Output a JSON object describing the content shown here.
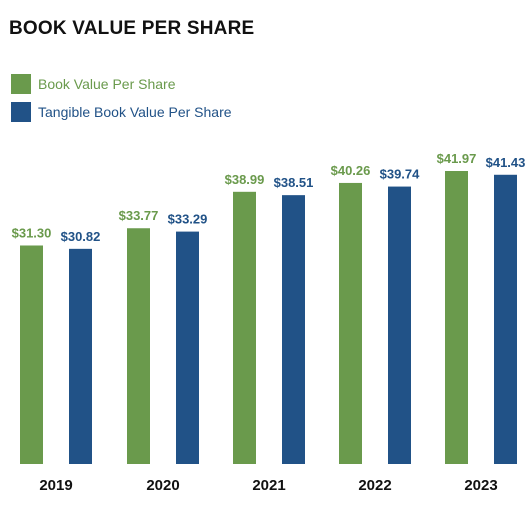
{
  "colors": {
    "book_value": "#6a9a4c",
    "tangible_book_value": "#215287"
  },
  "chart_data": {
    "type": "bar",
    "title": "BOOK VALUE PER SHARE",
    "categories": [
      "2019",
      "2020",
      "2021",
      "2022",
      "2023"
    ],
    "series": [
      {
        "name": "Book Value Per Share",
        "values": [
          31.3,
          33.77,
          38.99,
          40.26,
          41.97
        ],
        "labels": [
          "$31.30",
          "$33.77",
          "$38.99",
          "$40.26",
          "$41.97"
        ]
      },
      {
        "name": "Tangible Book Value Per Share",
        "values": [
          30.82,
          33.29,
          38.51,
          39.74,
          41.43
        ],
        "labels": [
          "$30.82",
          "$33.29",
          "$38.51",
          "$39.74",
          "$41.43"
        ]
      }
    ],
    "legend_position": "top-left",
    "grid": false,
    "ylim": [
      0,
      41.97
    ]
  }
}
